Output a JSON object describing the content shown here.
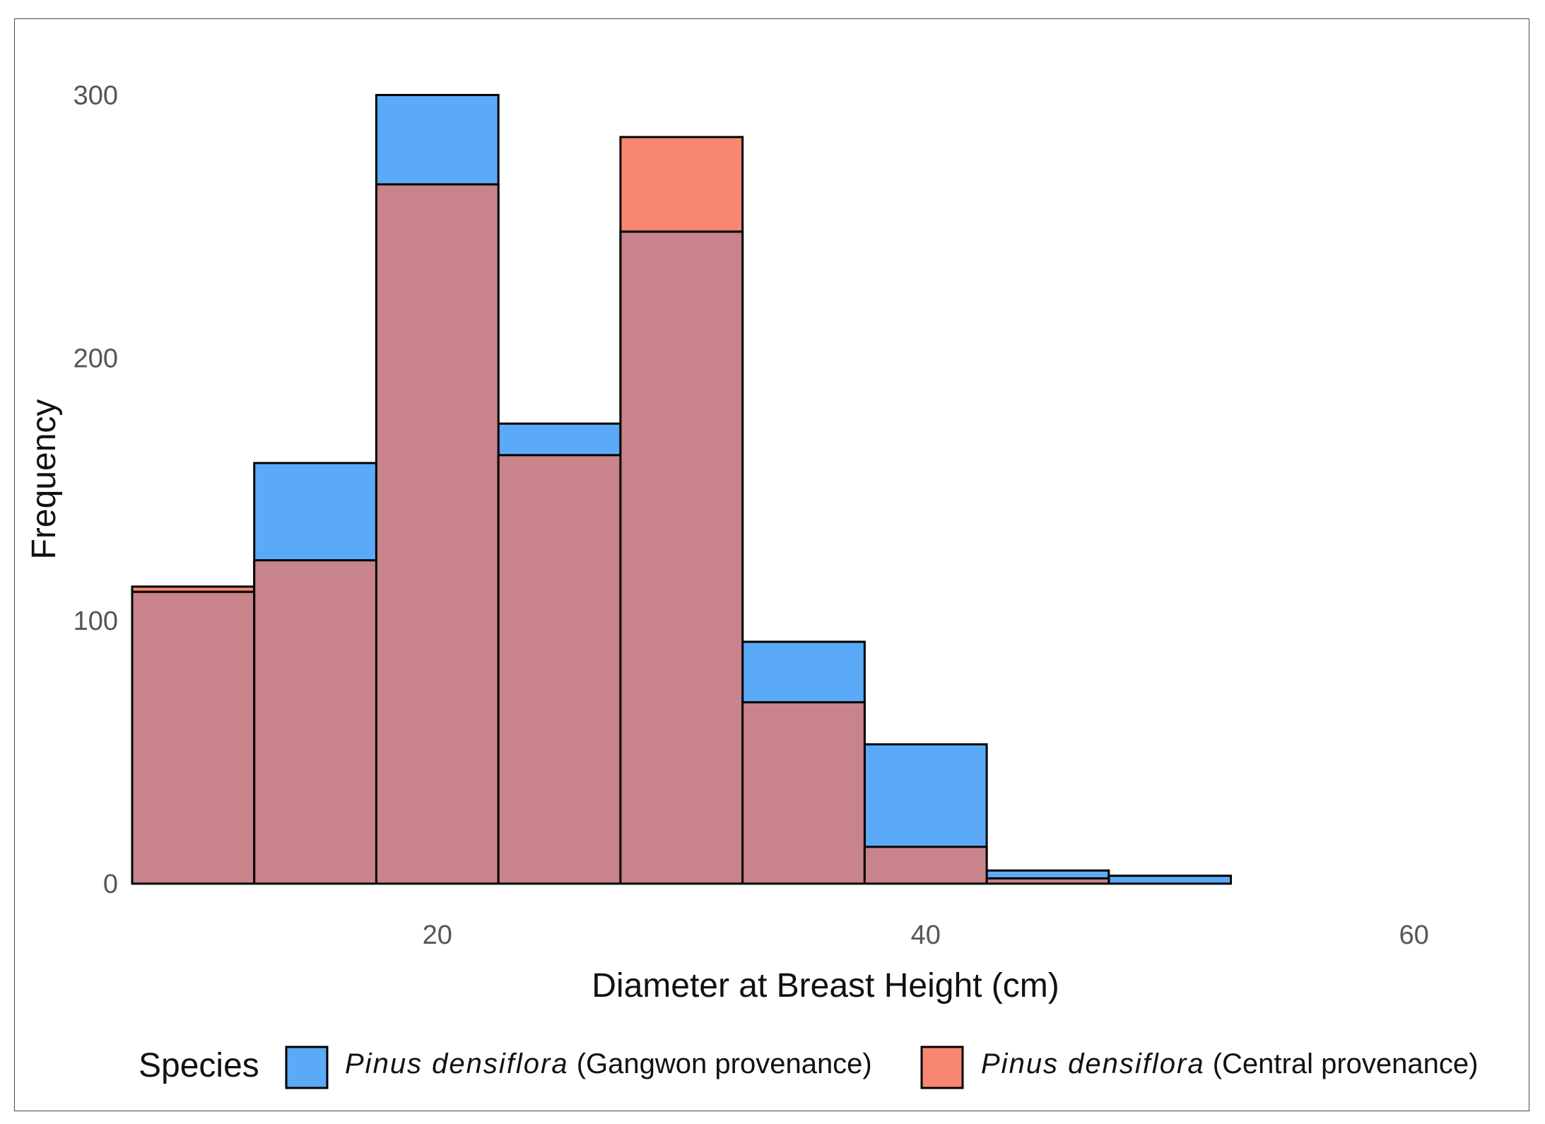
{
  "chart_data": {
    "type": "histogram",
    "xlabel": "Diameter at Breast Height (cm)",
    "ylabel": "Frequency",
    "xlim": [
      7.5,
      62.5
    ],
    "ylim": [
      0,
      320
    ],
    "x_ticks": [
      20,
      40,
      60
    ],
    "y_ticks": [
      0,
      100,
      200,
      300
    ],
    "bins": [
      [
        7.5,
        12.5
      ],
      [
        12.5,
        17.5
      ],
      [
        17.5,
        22.5
      ],
      [
        22.5,
        27.5
      ],
      [
        27.5,
        32.5
      ],
      [
        32.5,
        37.5
      ],
      [
        37.5,
        42.5
      ],
      [
        42.5,
        47.5
      ],
      [
        47.5,
        52.5
      ]
    ],
    "series": [
      {
        "name": "Pinus densiflora (Gangwon provenance)",
        "italic_part": "Pinus densiflora",
        "plain_part": " (Gangwon provenance)",
        "color": "#5aaaf7",
        "values": [
          111,
          160,
          300,
          175,
          248,
          92,
          53,
          5,
          3
        ]
      },
      {
        "name": "Pinus densiflora (Central provenance)",
        "italic_part": "Pinus densiflora",
        "plain_part": " (Central provenance)",
        "color": "#f88772",
        "values": [
          113,
          123,
          266,
          163,
          284,
          69,
          14,
          2,
          0
        ]
      }
    ],
    "overlap_color": "#c8838b",
    "legend": {
      "title": "Species",
      "position": "bottom"
    },
    "grid": false
  }
}
